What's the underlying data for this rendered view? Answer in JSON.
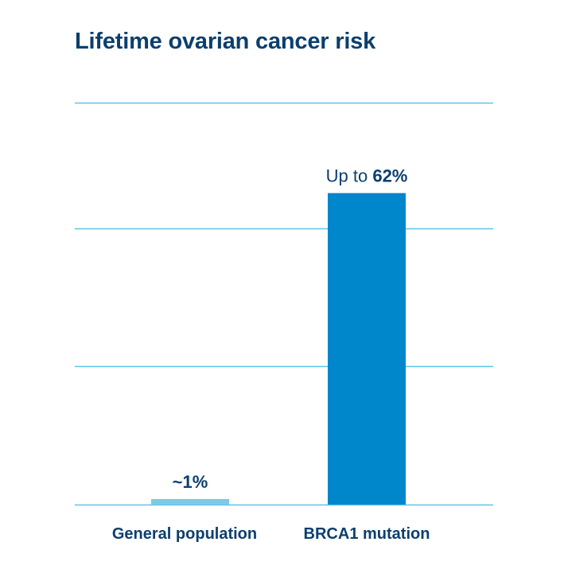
{
  "chart_data": {
    "type": "bar",
    "title": "Lifetime ovarian cancer risk",
    "categories": [
      "General population",
      "BRCA1 mutation"
    ],
    "values": [
      1,
      62
    ],
    "data_labels": [
      {
        "prefix": "",
        "value": "~1%"
      },
      {
        "prefix": "Up to ",
        "value": "62%"
      }
    ],
    "bar_colors": [
      "#7ccbe6",
      "#0086cb"
    ],
    "gridline_color": "#5cc4e6",
    "text_color": "#0b3f6e",
    "xlabel": "",
    "ylabel": "",
    "ylim": [
      0,
      80
    ],
    "gridlines": [
      0,
      27.5,
      55,
      80
    ],
    "grid": true
  }
}
